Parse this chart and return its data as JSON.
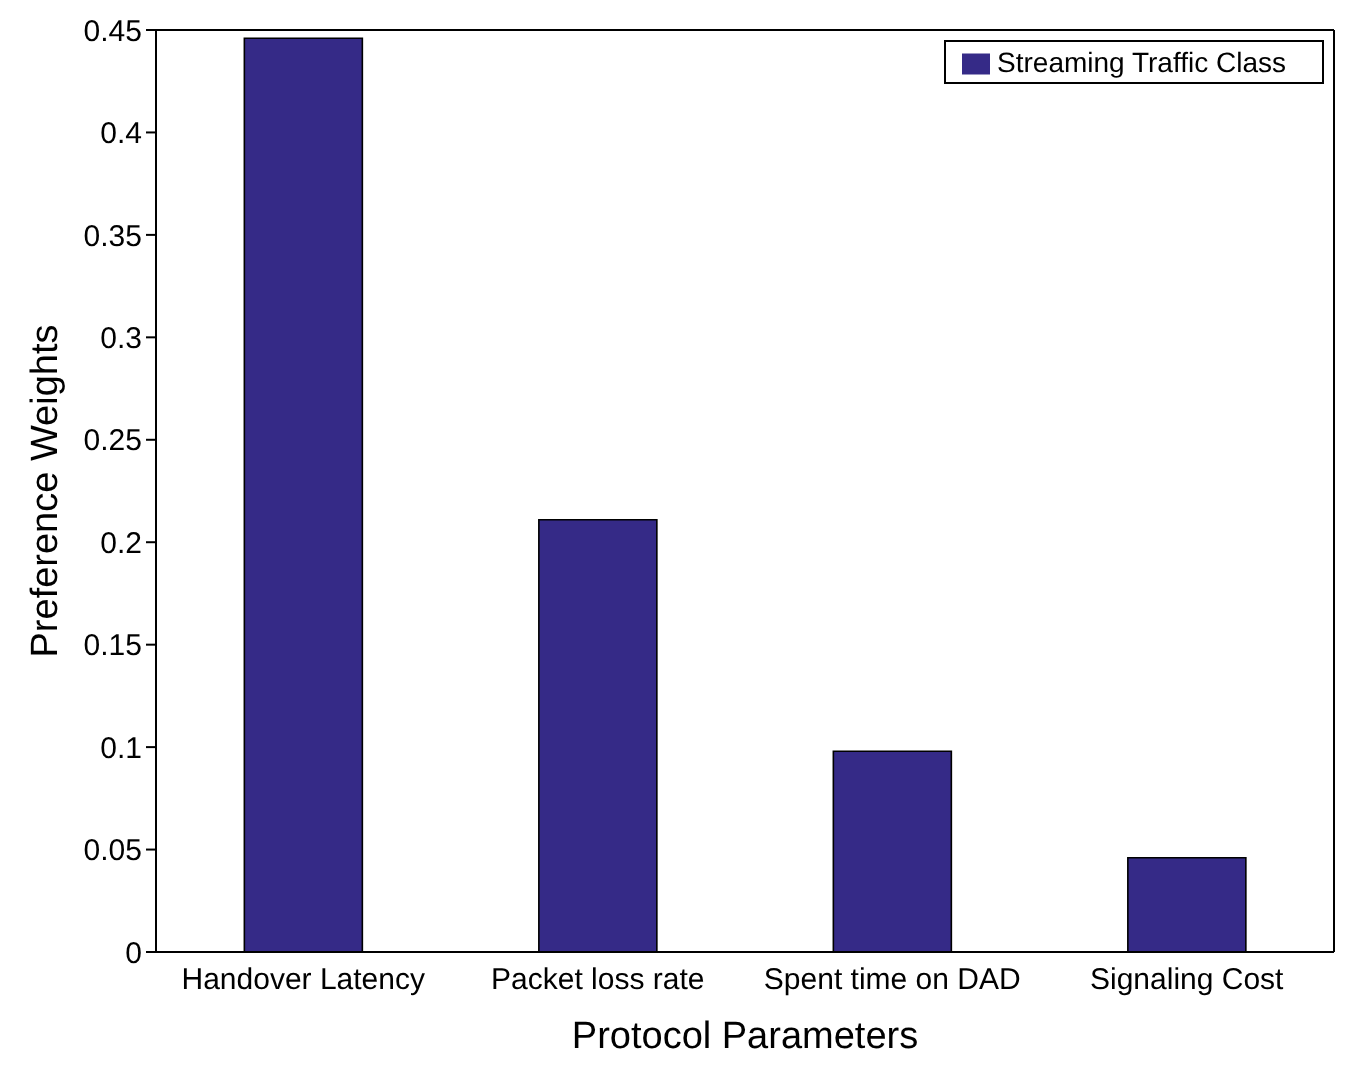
{
  "chart_data": {
    "type": "bar",
    "xlabel": "Protocol Parameters",
    "ylabel": "Preference Weights",
    "categories": [
      "Handover Latency",
      "Packet loss rate",
      "Spent time on DAD",
      "Signaling Cost"
    ],
    "series": [
      {
        "name": "Streaming Traffic Class",
        "color": "#352a87",
        "values": [
          0.446,
          0.211,
          0.098,
          0.046
        ]
      }
    ],
    "ylim": [
      0,
      0.45
    ],
    "yticks": [
      0,
      0.05,
      0.1,
      0.15,
      0.2,
      0.25,
      0.3,
      0.35,
      0.4,
      0.45
    ],
    "grid": false,
    "legend": "top right"
  }
}
